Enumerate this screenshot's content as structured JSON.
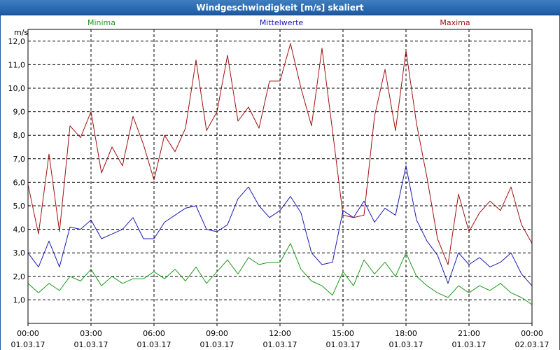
{
  "chart_data": {
    "type": "line",
    "title": "Windgeschwindigkeit [m/s] skaliert",
    "ylabel": "m/s",
    "ylim": [
      0,
      12.5
    ],
    "yticks": [
      "1,0",
      "2,0",
      "3,0",
      "4,0",
      "5,0",
      "6,0",
      "7,0",
      "8,0",
      "9,0",
      "10,0",
      "11,0",
      "12,0"
    ],
    "xticks": [
      {
        "time": "00:00",
        "date": "01.03.17"
      },
      {
        "time": "03:00",
        "date": "01.03.17"
      },
      {
        "time": "06:00",
        "date": "01.03.17"
      },
      {
        "time": "09:00",
        "date": "01.03.17"
      },
      {
        "time": "12:00",
        "date": "01.03.17"
      },
      {
        "time": "15:00",
        "date": "01.03.17"
      },
      {
        "time": "18:00",
        "date": "01.03.17"
      },
      {
        "time": "21:00",
        "date": "01.03.17"
      },
      {
        "time": "00:00",
        "date": "02.03.17"
      }
    ],
    "x_hours": [
      0,
      0.5,
      1,
      1.5,
      2,
      2.5,
      3,
      3.5,
      4,
      4.5,
      5,
      5.5,
      6,
      6.5,
      7,
      7.5,
      8,
      8.5,
      9,
      9.5,
      10,
      10.5,
      11,
      11.5,
      12,
      12.5,
      13,
      13.5,
      14,
      14.5,
      15,
      15.5,
      16,
      16.5,
      17,
      17.5,
      18,
      18.5,
      19,
      19.5,
      20,
      20.5,
      21,
      21.5,
      22,
      22.5,
      23,
      23.5,
      24
    ],
    "series": [
      {
        "name": "Maxima",
        "color": "#a01010",
        "values": [
          5.9,
          3.8,
          7.2,
          3.9,
          8.4,
          7.9,
          9.0,
          6.4,
          7.5,
          6.7,
          8.8,
          7.6,
          6.1,
          8.0,
          7.3,
          8.3,
          11.2,
          8.2,
          9.0,
          11.4,
          8.6,
          9.2,
          8.3,
          10.3,
          10.3,
          11.9,
          10.0,
          8.4,
          11.7,
          8.2,
          4.6,
          4.5,
          4.6,
          8.8,
          10.8,
          8.2,
          11.6,
          8.5,
          6.2,
          3.6,
          2.5,
          5.5,
          3.9,
          4.7,
          5.2,
          4.8,
          5.8,
          4.2,
          3.4
        ]
      },
      {
        "name": "Mittelwerte",
        "color": "#1a1ab4",
        "values": [
          3.0,
          2.4,
          3.5,
          2.4,
          4.1,
          4.0,
          4.4,
          3.6,
          3.8,
          4.0,
          4.5,
          3.6,
          3.6,
          4.3,
          4.6,
          4.9,
          5.0,
          4.0,
          3.9,
          4.2,
          5.3,
          5.8,
          5.0,
          4.5,
          4.8,
          5.4,
          4.7,
          3.0,
          2.5,
          2.6,
          4.8,
          4.5,
          5.2,
          4.3,
          4.9,
          4.6,
          6.7,
          4.4,
          3.5,
          2.9,
          1.7,
          3.0,
          2.5,
          2.8,
          2.4,
          2.6,
          3.0,
          2.1,
          1.6
        ]
      },
      {
        "name": "Minima",
        "color": "#1a9a1a",
        "values": [
          1.7,
          1.3,
          1.7,
          1.4,
          2.0,
          1.8,
          2.3,
          1.6,
          2.0,
          1.7,
          1.9,
          1.9,
          2.2,
          1.9,
          2.3,
          1.8,
          2.4,
          1.7,
          2.2,
          2.7,
          2.1,
          2.8,
          2.5,
          2.6,
          2.6,
          3.4,
          2.3,
          1.8,
          1.6,
          1.2,
          2.2,
          1.6,
          2.7,
          2.1,
          2.6,
          2.0,
          3.0,
          2.0,
          1.6,
          1.3,
          1.1,
          1.6,
          1.3,
          1.6,
          1.4,
          1.7,
          1.3,
          1.1,
          0.8
        ]
      }
    ],
    "grid": true,
    "legend_placement": "top"
  }
}
